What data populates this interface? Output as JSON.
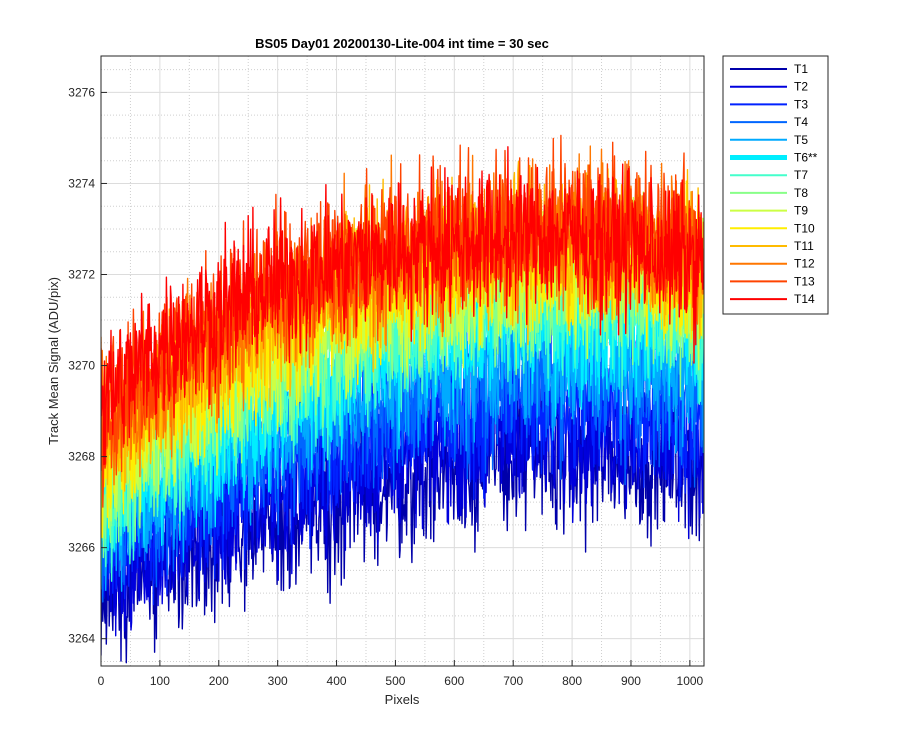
{
  "chart_data": {
    "type": "line",
    "title": "BS05 Day01 20200130-Lite-004 int time = 30 sec",
    "xlabel": "Pixels",
    "ylabel": "Track Mean Signal (ADU/pix)",
    "xlim": [
      0,
      1024
    ],
    "ylim": [
      3263.4,
      3276.8
    ],
    "xticks": [
      0,
      100,
      200,
      300,
      400,
      500,
      600,
      700,
      800,
      900,
      1000
    ],
    "yticks": [
      3264,
      3266,
      3268,
      3270,
      3272,
      3274,
      3276
    ],
    "grid": true,
    "minor_grid": true,
    "legend_position": "outside-top-right",
    "n_points": 1024,
    "noise_amplitude": 1.2,
    "series": [
      {
        "name": "T1",
        "color": "#0000aa",
        "highlight": false,
        "profile": {
          "x": [
            0,
            100,
            200,
            300,
            400,
            500,
            600,
            700,
            800,
            900,
            1024
          ],
          "y": [
            3265.0,
            3265.5,
            3266.0,
            3266.5,
            3267.0,
            3267.4,
            3267.8,
            3268.0,
            3268.0,
            3268.0,
            3267.8
          ]
        }
      },
      {
        "name": "T2",
        "color": "#0000dd",
        "highlight": false,
        "profile": {
          "x": [
            0,
            100,
            200,
            300,
            400,
            500,
            600,
            700,
            800,
            900,
            1024
          ],
          "y": [
            3265.4,
            3266.0,
            3266.6,
            3267.1,
            3267.6,
            3268.0,
            3268.4,
            3268.6,
            3268.6,
            3268.5,
            3268.3
          ]
        }
      },
      {
        "name": "T3",
        "color": "#0022ff",
        "highlight": false,
        "profile": {
          "x": [
            0,
            100,
            200,
            300,
            400,
            500,
            600,
            700,
            800,
            900,
            1024
          ],
          "y": [
            3265.8,
            3266.5,
            3267.2,
            3267.8,
            3268.3,
            3268.7,
            3269.0,
            3269.2,
            3269.2,
            3269.1,
            3268.9
          ]
        }
      },
      {
        "name": "T4",
        "color": "#0066ff",
        "highlight": false,
        "profile": {
          "x": [
            0,
            100,
            200,
            300,
            400,
            500,
            600,
            700,
            800,
            900,
            1024
          ],
          "y": [
            3266.2,
            3267.0,
            3267.7,
            3268.3,
            3268.8,
            3269.2,
            3269.5,
            3269.7,
            3269.7,
            3269.6,
            3269.4
          ]
        }
      },
      {
        "name": "T5",
        "color": "#00aaff",
        "highlight": false,
        "profile": {
          "x": [
            0,
            100,
            200,
            300,
            400,
            500,
            600,
            700,
            800,
            900,
            1024
          ],
          "y": [
            3266.6,
            3267.4,
            3268.1,
            3268.8,
            3269.3,
            3269.7,
            3270.0,
            3270.2,
            3270.2,
            3270.1,
            3269.8
          ]
        }
      },
      {
        "name": "T6**",
        "color": "#00eeff",
        "highlight": true,
        "profile": {
          "x": [
            0,
            100,
            200,
            300,
            400,
            500,
            600,
            700,
            800,
            900,
            1024
          ],
          "y": [
            3266.8,
            3267.7,
            3268.5,
            3269.2,
            3269.8,
            3270.3,
            3270.7,
            3271.0,
            3271.0,
            3270.9,
            3270.5
          ]
        }
      },
      {
        "name": "T7",
        "color": "#44ffcc",
        "highlight": false,
        "profile": {
          "x": [
            0,
            100,
            200,
            300,
            400,
            500,
            600,
            700,
            800,
            900,
            1024
          ],
          "y": [
            3267.0,
            3268.0,
            3268.9,
            3269.6,
            3270.2,
            3270.7,
            3271.1,
            3271.3,
            3271.4,
            3271.3,
            3270.9
          ]
        }
      },
      {
        "name": "T8",
        "color": "#88ff88",
        "highlight": false,
        "profile": {
          "x": [
            0,
            100,
            200,
            300,
            400,
            500,
            600,
            700,
            800,
            900,
            1024
          ],
          "y": [
            3267.3,
            3268.4,
            3269.3,
            3270.0,
            3270.6,
            3271.1,
            3271.5,
            3271.7,
            3271.8,
            3271.7,
            3271.3
          ]
        }
      },
      {
        "name": "T9",
        "color": "#ccff44",
        "highlight": false,
        "profile": {
          "x": [
            0,
            100,
            200,
            300,
            400,
            500,
            600,
            700,
            800,
            900,
            1024
          ],
          "y": [
            3267.6,
            3268.8,
            3269.7,
            3270.4,
            3271.0,
            3271.5,
            3271.8,
            3272.0,
            3272.1,
            3272.0,
            3271.6
          ]
        }
      },
      {
        "name": "T10",
        "color": "#ffee00",
        "highlight": false,
        "profile": {
          "x": [
            0,
            100,
            200,
            300,
            400,
            500,
            600,
            700,
            800,
            900,
            1024
          ],
          "y": [
            3267.9,
            3269.1,
            3270.0,
            3270.7,
            3271.3,
            3271.8,
            3272.1,
            3272.3,
            3272.4,
            3272.3,
            3271.9
          ]
        }
      },
      {
        "name": "T11",
        "color": "#ffbb00",
        "highlight": false,
        "profile": {
          "x": [
            0,
            100,
            200,
            300,
            400,
            500,
            600,
            700,
            800,
            900,
            1024
          ],
          "y": [
            3268.2,
            3269.4,
            3270.3,
            3271.0,
            3271.6,
            3272.1,
            3272.4,
            3272.6,
            3272.7,
            3272.6,
            3272.2
          ]
        }
      },
      {
        "name": "T12",
        "color": "#ff7700",
        "highlight": false,
        "profile": {
          "x": [
            0,
            100,
            200,
            300,
            400,
            500,
            600,
            700,
            800,
            900,
            1024
          ],
          "y": [
            3268.6,
            3269.8,
            3270.7,
            3271.4,
            3271.9,
            3272.4,
            3272.7,
            3272.9,
            3273.0,
            3272.9,
            3272.5
          ]
        }
      },
      {
        "name": "T13",
        "color": "#ff4400",
        "highlight": false,
        "profile": {
          "x": [
            0,
            100,
            200,
            300,
            400,
            500,
            600,
            700,
            800,
            900,
            1024
          ],
          "y": [
            3268.9,
            3270.1,
            3271.0,
            3271.7,
            3272.2,
            3272.6,
            3272.9,
            3273.1,
            3273.2,
            3273.1,
            3272.7
          ]
        }
      },
      {
        "name": "T14",
        "color": "#ff0000",
        "highlight": false,
        "profile": {
          "x": [
            0,
            100,
            200,
            300,
            400,
            500,
            600,
            700,
            800,
            900,
            1024
          ],
          "y": [
            3269.2,
            3270.4,
            3271.2,
            3271.8,
            3272.2,
            3272.5,
            3272.7,
            3272.8,
            3272.8,
            3272.6,
            3272.2
          ]
        }
      }
    ]
  }
}
